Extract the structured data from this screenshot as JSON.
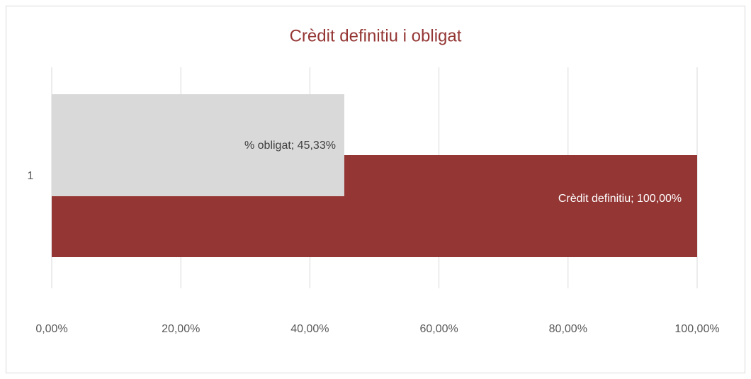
{
  "chart_data": {
    "type": "bar",
    "orientation": "horizontal",
    "title": "Crèdit definitiu i obligat",
    "categories": [
      "1"
    ],
    "series": [
      {
        "name": "Crèdit definitiu",
        "color": "#943634",
        "values": [
          100
        ],
        "value_labels": [
          "Crèdit definitiu; 100,00%"
        ]
      },
      {
        "name": "% obligat",
        "color": "#d9d9d9",
        "values": [
          45.33
        ],
        "value_labels": [
          "% obligat; 45,33%"
        ]
      }
    ],
    "xlim": [
      0,
      100
    ],
    "xticks": [
      {
        "value": 0,
        "label": "0,00%"
      },
      {
        "value": 20,
        "label": "20,00%"
      },
      {
        "value": 40,
        "label": "40,00%"
      },
      {
        "value": 60,
        "label": "60,00%"
      },
      {
        "value": 80,
        "label": "80,00%"
      },
      {
        "value": 100,
        "label": "100,00%"
      }
    ],
    "grid": true
  }
}
